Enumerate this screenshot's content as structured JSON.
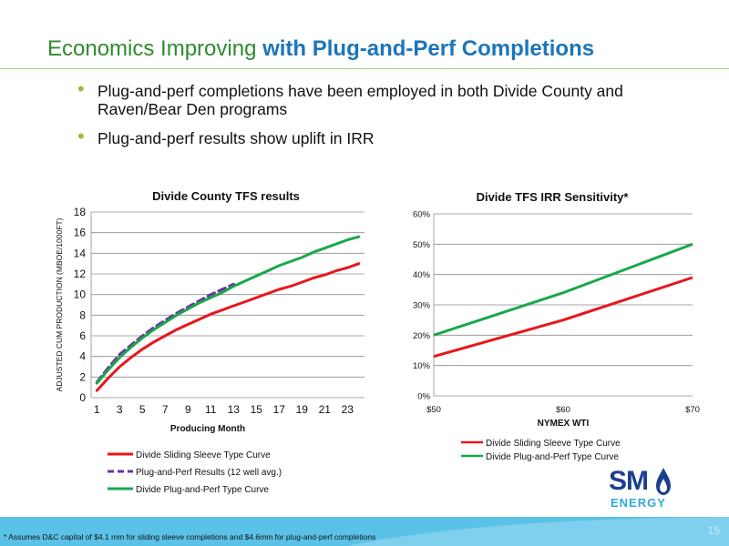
{
  "slide": {
    "title_part1": "Economics Improving",
    "title_part2": "with Plug-and-Perf Completions",
    "bullets": [
      "Plug-and-perf completions have been employed in both Divide County and Raven/Bear Den programs",
      "Plug-and-perf results show uplift in IRR"
    ],
    "footnote": "* Assumes D&C capital of $4.1 mm for sliding sleeve completions and $4.6mm for plug-and-perf completions",
    "page_number": "15",
    "logo": {
      "top": "SM",
      "bottom": "ENERGY"
    }
  },
  "chart_data": [
    {
      "type": "line",
      "title": "Divide County TFS results",
      "xlabel": "Producing Month",
      "ylabel": "ADJUSTED CUM PRODUCTION (MBOE/1000FT)",
      "xlim": [
        1,
        24
      ],
      "ylim": [
        0,
        18
      ],
      "x_ticks": [
        "1",
        "3",
        "5",
        "7",
        "9",
        "11",
        "13",
        "15",
        "17",
        "19",
        "21",
        "23"
      ],
      "y_ticks": [
        "0",
        "2",
        "4",
        "6",
        "8",
        "10",
        "12",
        "14",
        "16",
        "18"
      ],
      "grid": "horizontal",
      "legend_position": "bottom",
      "series": [
        {
          "name": "Divide Sliding Sleeve Type Curve",
          "color": "#e8161b",
          "dash": "solid",
          "x": [
            1,
            2,
            3,
            4,
            5,
            6,
            7,
            8,
            9,
            10,
            11,
            12,
            13,
            14,
            15,
            16,
            17,
            18,
            19,
            20,
            21,
            22,
            23,
            24
          ],
          "y": [
            0.7,
            1.9,
            3.0,
            3.9,
            4.7,
            5.4,
            6.0,
            6.6,
            7.1,
            7.6,
            8.1,
            8.5,
            8.9,
            9.3,
            9.7,
            10.1,
            10.5,
            10.8,
            11.2,
            11.6,
            11.9,
            12.3,
            12.6,
            13.0
          ]
        },
        {
          "name": "Plug-and-Perf Results (12 well avg.)",
          "color": "#7030a0",
          "dash": "dashed",
          "x": [
            1,
            2,
            3,
            4,
            5,
            6,
            7,
            8,
            9,
            10,
            11,
            12,
            13
          ],
          "y": [
            1.5,
            2.9,
            4.2,
            5.1,
            6.0,
            6.8,
            7.5,
            8.2,
            8.8,
            9.4,
            10.0,
            10.5,
            11.0
          ]
        },
        {
          "name": "Divide Plug-and-Perf Type Curve",
          "color": "#18a84a",
          "dash": "solid",
          "x": [
            1,
            2,
            3,
            4,
            5,
            6,
            7,
            8,
            9,
            10,
            11,
            12,
            13,
            14,
            15,
            16,
            17,
            18,
            19,
            20,
            21,
            22,
            23,
            24
          ],
          "y": [
            1.4,
            2.7,
            3.9,
            4.9,
            5.8,
            6.6,
            7.3,
            8.0,
            8.6,
            9.2,
            9.7,
            10.2,
            10.8,
            11.3,
            11.8,
            12.3,
            12.8,
            13.2,
            13.6,
            14.1,
            14.5,
            14.9,
            15.3,
            15.6
          ]
        }
      ]
    },
    {
      "type": "line",
      "title": "Divide TFS IRR Sensitivity*",
      "xlabel": "NYMEX WTI",
      "ylabel": "",
      "categories": [
        "$50",
        "$60",
        "$70"
      ],
      "ylim": [
        0,
        0.6
      ],
      "y_ticks": [
        "0%",
        "10%",
        "20%",
        "30%",
        "40%",
        "50%",
        "60%"
      ],
      "grid": "horizontal",
      "legend_position": "bottom",
      "series": [
        {
          "name": "Divide Sliding Sleeve Type Curve",
          "color": "#e8161b",
          "values": [
            0.13,
            0.25,
            0.39
          ]
        },
        {
          "name": "Divide Plug-and-Perf Type Curve",
          "color": "#18a84a",
          "values": [
            0.2,
            0.34,
            0.5
          ]
        }
      ]
    }
  ]
}
